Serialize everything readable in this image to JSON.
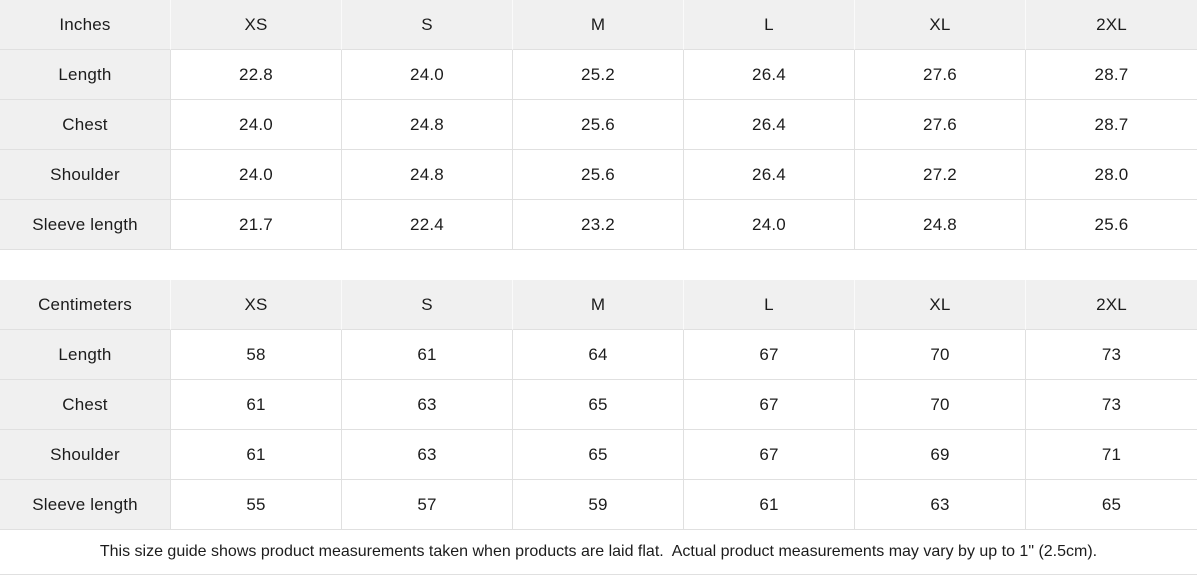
{
  "colors": {
    "header_bg": "#f0f0f0",
    "border": "#e0e0e0",
    "text": "#1c1c1c"
  },
  "tables": [
    {
      "unit_label": "Inches",
      "columns": [
        "XS",
        "S",
        "M",
        "L",
        "XL",
        "2XL"
      ],
      "rows": [
        {
          "label": "Length",
          "values": [
            "22.8",
            "24.0",
            "25.2",
            "26.4",
            "27.6",
            "28.7"
          ]
        },
        {
          "label": "Chest",
          "values": [
            "24.0",
            "24.8",
            "25.6",
            "26.4",
            "27.6",
            "28.7"
          ]
        },
        {
          "label": "Shoulder",
          "values": [
            "24.0",
            "24.8",
            "25.6",
            "26.4",
            "27.2",
            "28.0"
          ]
        },
        {
          "label": "Sleeve length",
          "values": [
            "21.7",
            "22.4",
            "23.2",
            "24.0",
            "24.8",
            "25.6"
          ]
        }
      ]
    },
    {
      "unit_label": "Centimeters",
      "columns": [
        "XS",
        "S",
        "M",
        "L",
        "XL",
        "2XL"
      ],
      "rows": [
        {
          "label": "Length",
          "values": [
            "58",
            "61",
            "64",
            "67",
            "70",
            "73"
          ]
        },
        {
          "label": "Chest",
          "values": [
            "61",
            "63",
            "65",
            "67",
            "70",
            "73"
          ]
        },
        {
          "label": "Shoulder",
          "values": [
            "61",
            "63",
            "65",
            "67",
            "69",
            "71"
          ]
        },
        {
          "label": "Sleeve length",
          "values": [
            "55",
            "57",
            "59",
            "61",
            "63",
            "65"
          ]
        }
      ]
    }
  ],
  "footer": {
    "note": "This size guide shows product measurements taken when products are laid flat.  Actual product measurements may vary by up to 1\" (2.5cm)."
  }
}
